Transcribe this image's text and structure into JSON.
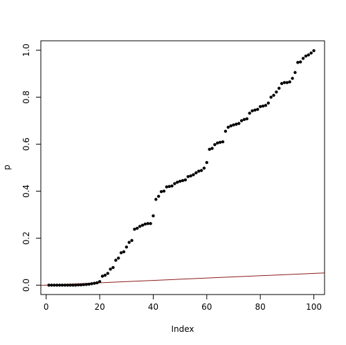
{
  "chart_data": {
    "type": "scatter",
    "title": "",
    "xlabel": "Index",
    "ylabel": "p",
    "xlim": [
      -2,
      104
    ],
    "ylim": [
      -0.04,
      1.04
    ],
    "grid": false,
    "x_ticks": [
      0,
      20,
      40,
      60,
      80,
      100
    ],
    "y_ticks": [
      0.0,
      0.2,
      0.4,
      0.6,
      0.8,
      1.0
    ],
    "x_tick_labels": [
      "0",
      "20",
      "40",
      "60",
      "80",
      "100"
    ],
    "y_tick_labels": [
      "0.0",
      "0.2",
      "0.4",
      "0.6",
      "0.8",
      "1.0"
    ],
    "series": [
      {
        "type": "scatter",
        "color": "#000000",
        "x": [
          1,
          2,
          3,
          4,
          5,
          6,
          7,
          8,
          9,
          10,
          11,
          12,
          13,
          14,
          15,
          16,
          17,
          18,
          19,
          20,
          21,
          22,
          23,
          24,
          25,
          26,
          27,
          28,
          29,
          30,
          31,
          32,
          33,
          34,
          35,
          36,
          37,
          38,
          39,
          40,
          41,
          42,
          43,
          44,
          45,
          46,
          47,
          48,
          49,
          50,
          51,
          52,
          53,
          54,
          55,
          56,
          57,
          58,
          59,
          60,
          61,
          62,
          63,
          64,
          65,
          66,
          67,
          68,
          69,
          70,
          71,
          72,
          73,
          74,
          75,
          76,
          77,
          78,
          79,
          80,
          81,
          82,
          83,
          84,
          85,
          86,
          87,
          88,
          89,
          90,
          91,
          92,
          93,
          94,
          95,
          96,
          97,
          98,
          99,
          100
        ],
        "y": [
          0.0,
          0.0,
          0.0,
          0.0,
          0.0,
          0.0,
          0.0,
          0.0,
          0.0,
          0.0,
          0.0,
          0.001,
          0.001,
          0.002,
          0.003,
          0.004,
          0.006,
          0.008,
          0.01,
          0.015,
          0.038,
          0.042,
          0.05,
          0.068,
          0.075,
          0.106,
          0.115,
          0.138,
          0.142,
          0.162,
          0.182,
          0.19,
          0.238,
          0.242,
          0.25,
          0.255,
          0.26,
          0.262,
          0.262,
          0.295,
          0.365,
          0.378,
          0.398,
          0.4,
          0.418,
          0.42,
          0.422,
          0.432,
          0.438,
          0.442,
          0.445,
          0.448,
          0.462,
          0.465,
          0.47,
          0.478,
          0.485,
          0.488,
          0.498,
          0.522,
          0.578,
          0.582,
          0.598,
          0.605,
          0.608,
          0.61,
          0.655,
          0.672,
          0.678,
          0.682,
          0.685,
          0.688,
          0.7,
          0.705,
          0.708,
          0.732,
          0.742,
          0.745,
          0.748,
          0.76,
          0.762,
          0.765,
          0.775,
          0.8,
          0.808,
          0.822,
          0.838,
          0.858,
          0.862,
          0.862,
          0.865,
          0.88,
          0.905,
          0.948,
          0.95,
          0.965,
          0.975,
          0.98,
          0.988,
          0.998
        ]
      },
      {
        "type": "line",
        "color": "#8b1a1a",
        "x": [
          -2,
          104
        ],
        "y": [
          -0.001,
          0.052
        ]
      }
    ]
  }
}
